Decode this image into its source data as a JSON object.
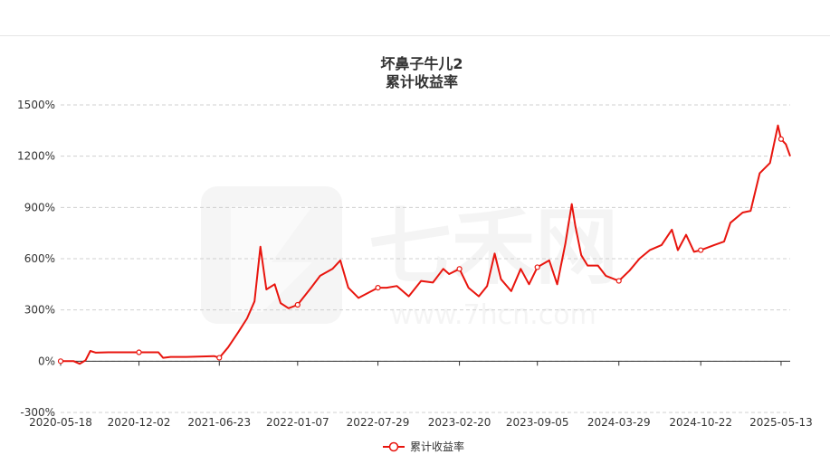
{
  "chart_data": {
    "type": "line",
    "title": "坏鼻子牛儿2",
    "subtitle": "累计收益率",
    "x_tick_labels": [
      "2020-05-18",
      "2020-12-02",
      "2021-06-23",
      "2022-01-07",
      "2022-07-29",
      "2023-02-20",
      "2023-09-05",
      "2024-03-29",
      "2024-10-22",
      "2025-05-13"
    ],
    "y_tick_labels": [
      "-300%",
      "0%",
      "300%",
      "600%",
      "900%",
      "1200%",
      "1500%"
    ],
    "ylim": [
      -300,
      1500
    ],
    "y_unit": "%",
    "grid": "horizontal-dashed",
    "legend": {
      "position": "bottom-center",
      "label": "累计收益率"
    },
    "series": [
      {
        "name": "累计收益率",
        "color": "#e8150e",
        "points": [
          [
            "2020-05-18",
            0
          ],
          [
            "2020-06-20",
            0
          ],
          [
            "2020-07-05",
            -15
          ],
          [
            "2020-07-20",
            5
          ],
          [
            "2020-08-01",
            60
          ],
          [
            "2020-08-15",
            50
          ],
          [
            "2020-09-15",
            52
          ],
          [
            "2020-12-02",
            52
          ],
          [
            "2021-01-20",
            52
          ],
          [
            "2021-02-01",
            20
          ],
          [
            "2021-02-20",
            25
          ],
          [
            "2021-04-01",
            25
          ],
          [
            "2021-06-10",
            30
          ],
          [
            "2021-06-23",
            20
          ],
          [
            "2021-07-15",
            80
          ],
          [
            "2021-08-10",
            170
          ],
          [
            "2021-09-01",
            250
          ],
          [
            "2021-09-20",
            350
          ],
          [
            "2021-10-05",
            670
          ],
          [
            "2021-10-20",
            420
          ],
          [
            "2021-11-10",
            450
          ],
          [
            "2021-11-25",
            340
          ],
          [
            "2021-12-15",
            310
          ],
          [
            "2022-01-07",
            330
          ],
          [
            "2022-02-10",
            430
          ],
          [
            "2022-03-05",
            500
          ],
          [
            "2022-04-05",
            540
          ],
          [
            "2022-04-25",
            590
          ],
          [
            "2022-05-15",
            430
          ],
          [
            "2022-06-10",
            370
          ],
          [
            "2022-07-29",
            430
          ],
          [
            "2022-08-20",
            430
          ],
          [
            "2022-09-15",
            440
          ],
          [
            "2022-10-15",
            380
          ],
          [
            "2022-11-15",
            470
          ],
          [
            "2022-12-15",
            460
          ],
          [
            "2023-01-10",
            540
          ],
          [
            "2023-01-25",
            510
          ],
          [
            "2023-02-20",
            540
          ],
          [
            "2023-03-15",
            430
          ],
          [
            "2023-04-10",
            380
          ],
          [
            "2023-05-01",
            440
          ],
          [
            "2023-05-20",
            630
          ],
          [
            "2023-06-05",
            480
          ],
          [
            "2023-07-01",
            410
          ],
          [
            "2023-07-25",
            540
          ],
          [
            "2023-08-15",
            450
          ],
          [
            "2023-09-05",
            550
          ],
          [
            "2023-10-05",
            590
          ],
          [
            "2023-10-25",
            450
          ],
          [
            "2023-11-15",
            690
          ],
          [
            "2023-12-01",
            920
          ],
          [
            "2023-12-10",
            790
          ],
          [
            "2023-12-25",
            620
          ],
          [
            "2024-01-10",
            560
          ],
          [
            "2024-02-05",
            560
          ],
          [
            "2024-02-25",
            500
          ],
          [
            "2024-03-29",
            470
          ],
          [
            "2024-04-25",
            530
          ],
          [
            "2024-05-20",
            600
          ],
          [
            "2024-06-15",
            650
          ],
          [
            "2024-07-15",
            680
          ],
          [
            "2024-08-10",
            770
          ],
          [
            "2024-08-25",
            650
          ],
          [
            "2024-09-15",
            740
          ],
          [
            "2024-10-05",
            640
          ],
          [
            "2024-10-22",
            650
          ],
          [
            "2024-11-25",
            680
          ],
          [
            "2024-12-20",
            700
          ],
          [
            "2025-01-05",
            810
          ],
          [
            "2025-02-05",
            870
          ],
          [
            "2025-02-25",
            880
          ],
          [
            "2025-03-20",
            1100
          ],
          [
            "2025-04-15",
            1160
          ],
          [
            "2025-05-05",
            1380
          ],
          [
            "2025-05-13",
            1300
          ],
          [
            "2025-05-25",
            1270
          ],
          [
            "2025-06-05",
            1200
          ]
        ]
      }
    ]
  },
  "watermark": {
    "brand_mark": "七禾网",
    "url": "www.7hcn.com"
  }
}
